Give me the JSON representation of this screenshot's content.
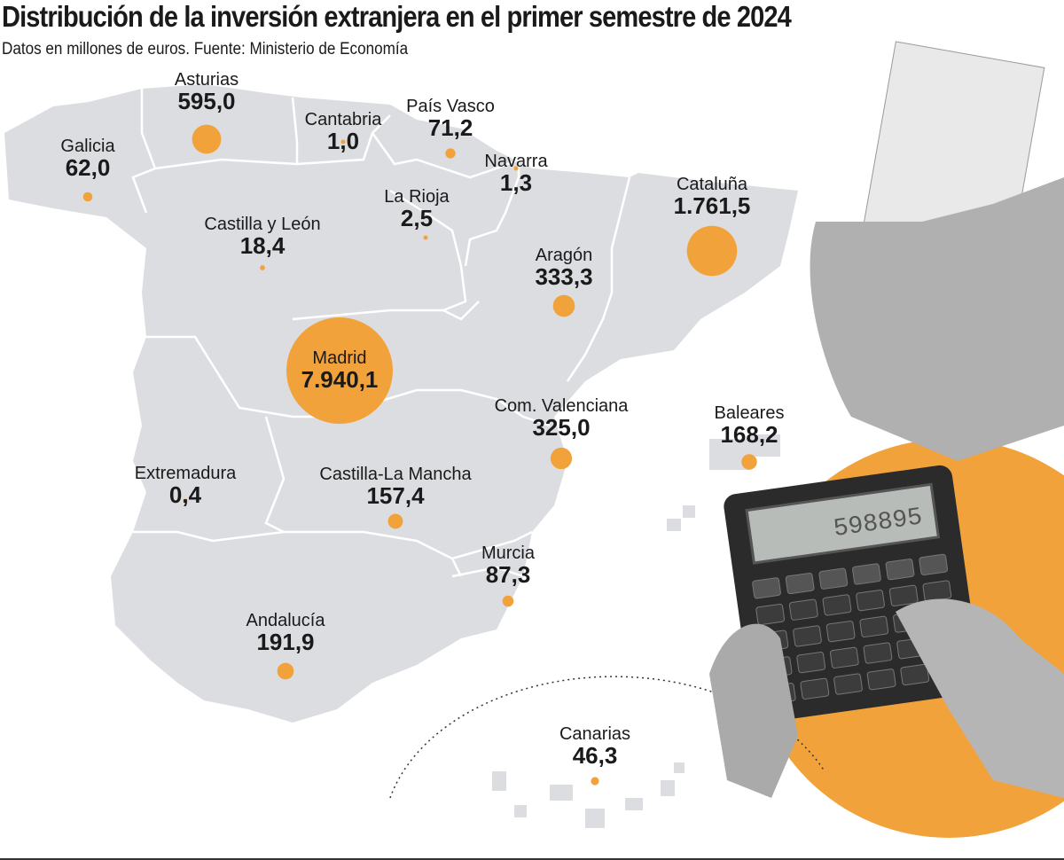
{
  "header": {
    "title": "Distribución de la inversión extranjera en el primer semestre de 2024",
    "subtitle": "Datos en millones de euros. Fuente: Ministerio de Economía"
  },
  "colors": {
    "bubble": "#F2A23A",
    "land": "#DCDDE0",
    "border": "#FFFFFF"
  },
  "regions": [
    {
      "name": "Asturias",
      "value": "595,0",
      "amount": 595.0
    },
    {
      "name": "Galicia",
      "value": "62,0",
      "amount": 62.0
    },
    {
      "name": "Cantabria",
      "value": "1,0",
      "amount": 1.0
    },
    {
      "name": "País Vasco",
      "value": "71,2",
      "amount": 71.2
    },
    {
      "name": "Navarra",
      "value": "1,3",
      "amount": 1.3
    },
    {
      "name": "La Rioja",
      "value": "2,5",
      "amount": 2.5
    },
    {
      "name": "Castilla y León",
      "value": "18,4",
      "amount": 18.4
    },
    {
      "name": "Cataluña",
      "value": "1.761,5",
      "amount": 1761.5
    },
    {
      "name": "Aragón",
      "value": "333,3",
      "amount": 333.3
    },
    {
      "name": "Madrid",
      "value": "7.940,1",
      "amount": 7940.1
    },
    {
      "name": "Com. Valenciana",
      "value": "325,0",
      "amount": 325.0
    },
    {
      "name": "Baleares",
      "value": "168,2",
      "amount": 168.2
    },
    {
      "name": "Extremadura",
      "value": "0,4",
      "amount": 0.4
    },
    {
      "name": "Castilla-La Mancha",
      "value": "157,4",
      "amount": 157.4
    },
    {
      "name": "Murcia",
      "value": "87,3",
      "amount": 87.3
    },
    {
      "name": "Andalucía",
      "value": "191,9",
      "amount": 191.9
    },
    {
      "name": "Canarias",
      "value": "46,3",
      "amount": 46.3
    }
  ],
  "illustration": {
    "calculator_display": "598895"
  }
}
